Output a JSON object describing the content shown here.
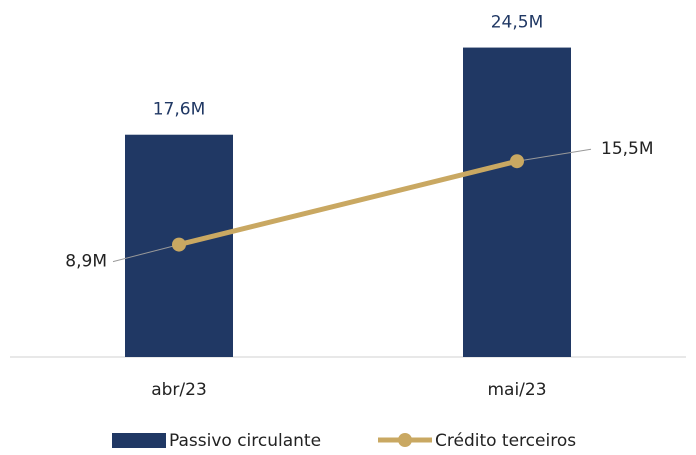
{
  "chart_data": {
    "type": "bar",
    "categories": [
      "abr/23",
      "mai/23"
    ],
    "series": [
      {
        "name": "Passivo circulante",
        "type": "bar",
        "color": "#203864",
        "values": [
          17.6,
          24.5
        ],
        "value_labels": [
          "17,6M",
          "24,5M"
        ]
      },
      {
        "name": "Crédito terceiros",
        "type": "line",
        "color": "#c9a862",
        "values": [
          8.9,
          15.5
        ],
        "value_labels": [
          "8,9M",
          "15,5M"
        ]
      }
    ],
    "legend": "bottom"
  }
}
